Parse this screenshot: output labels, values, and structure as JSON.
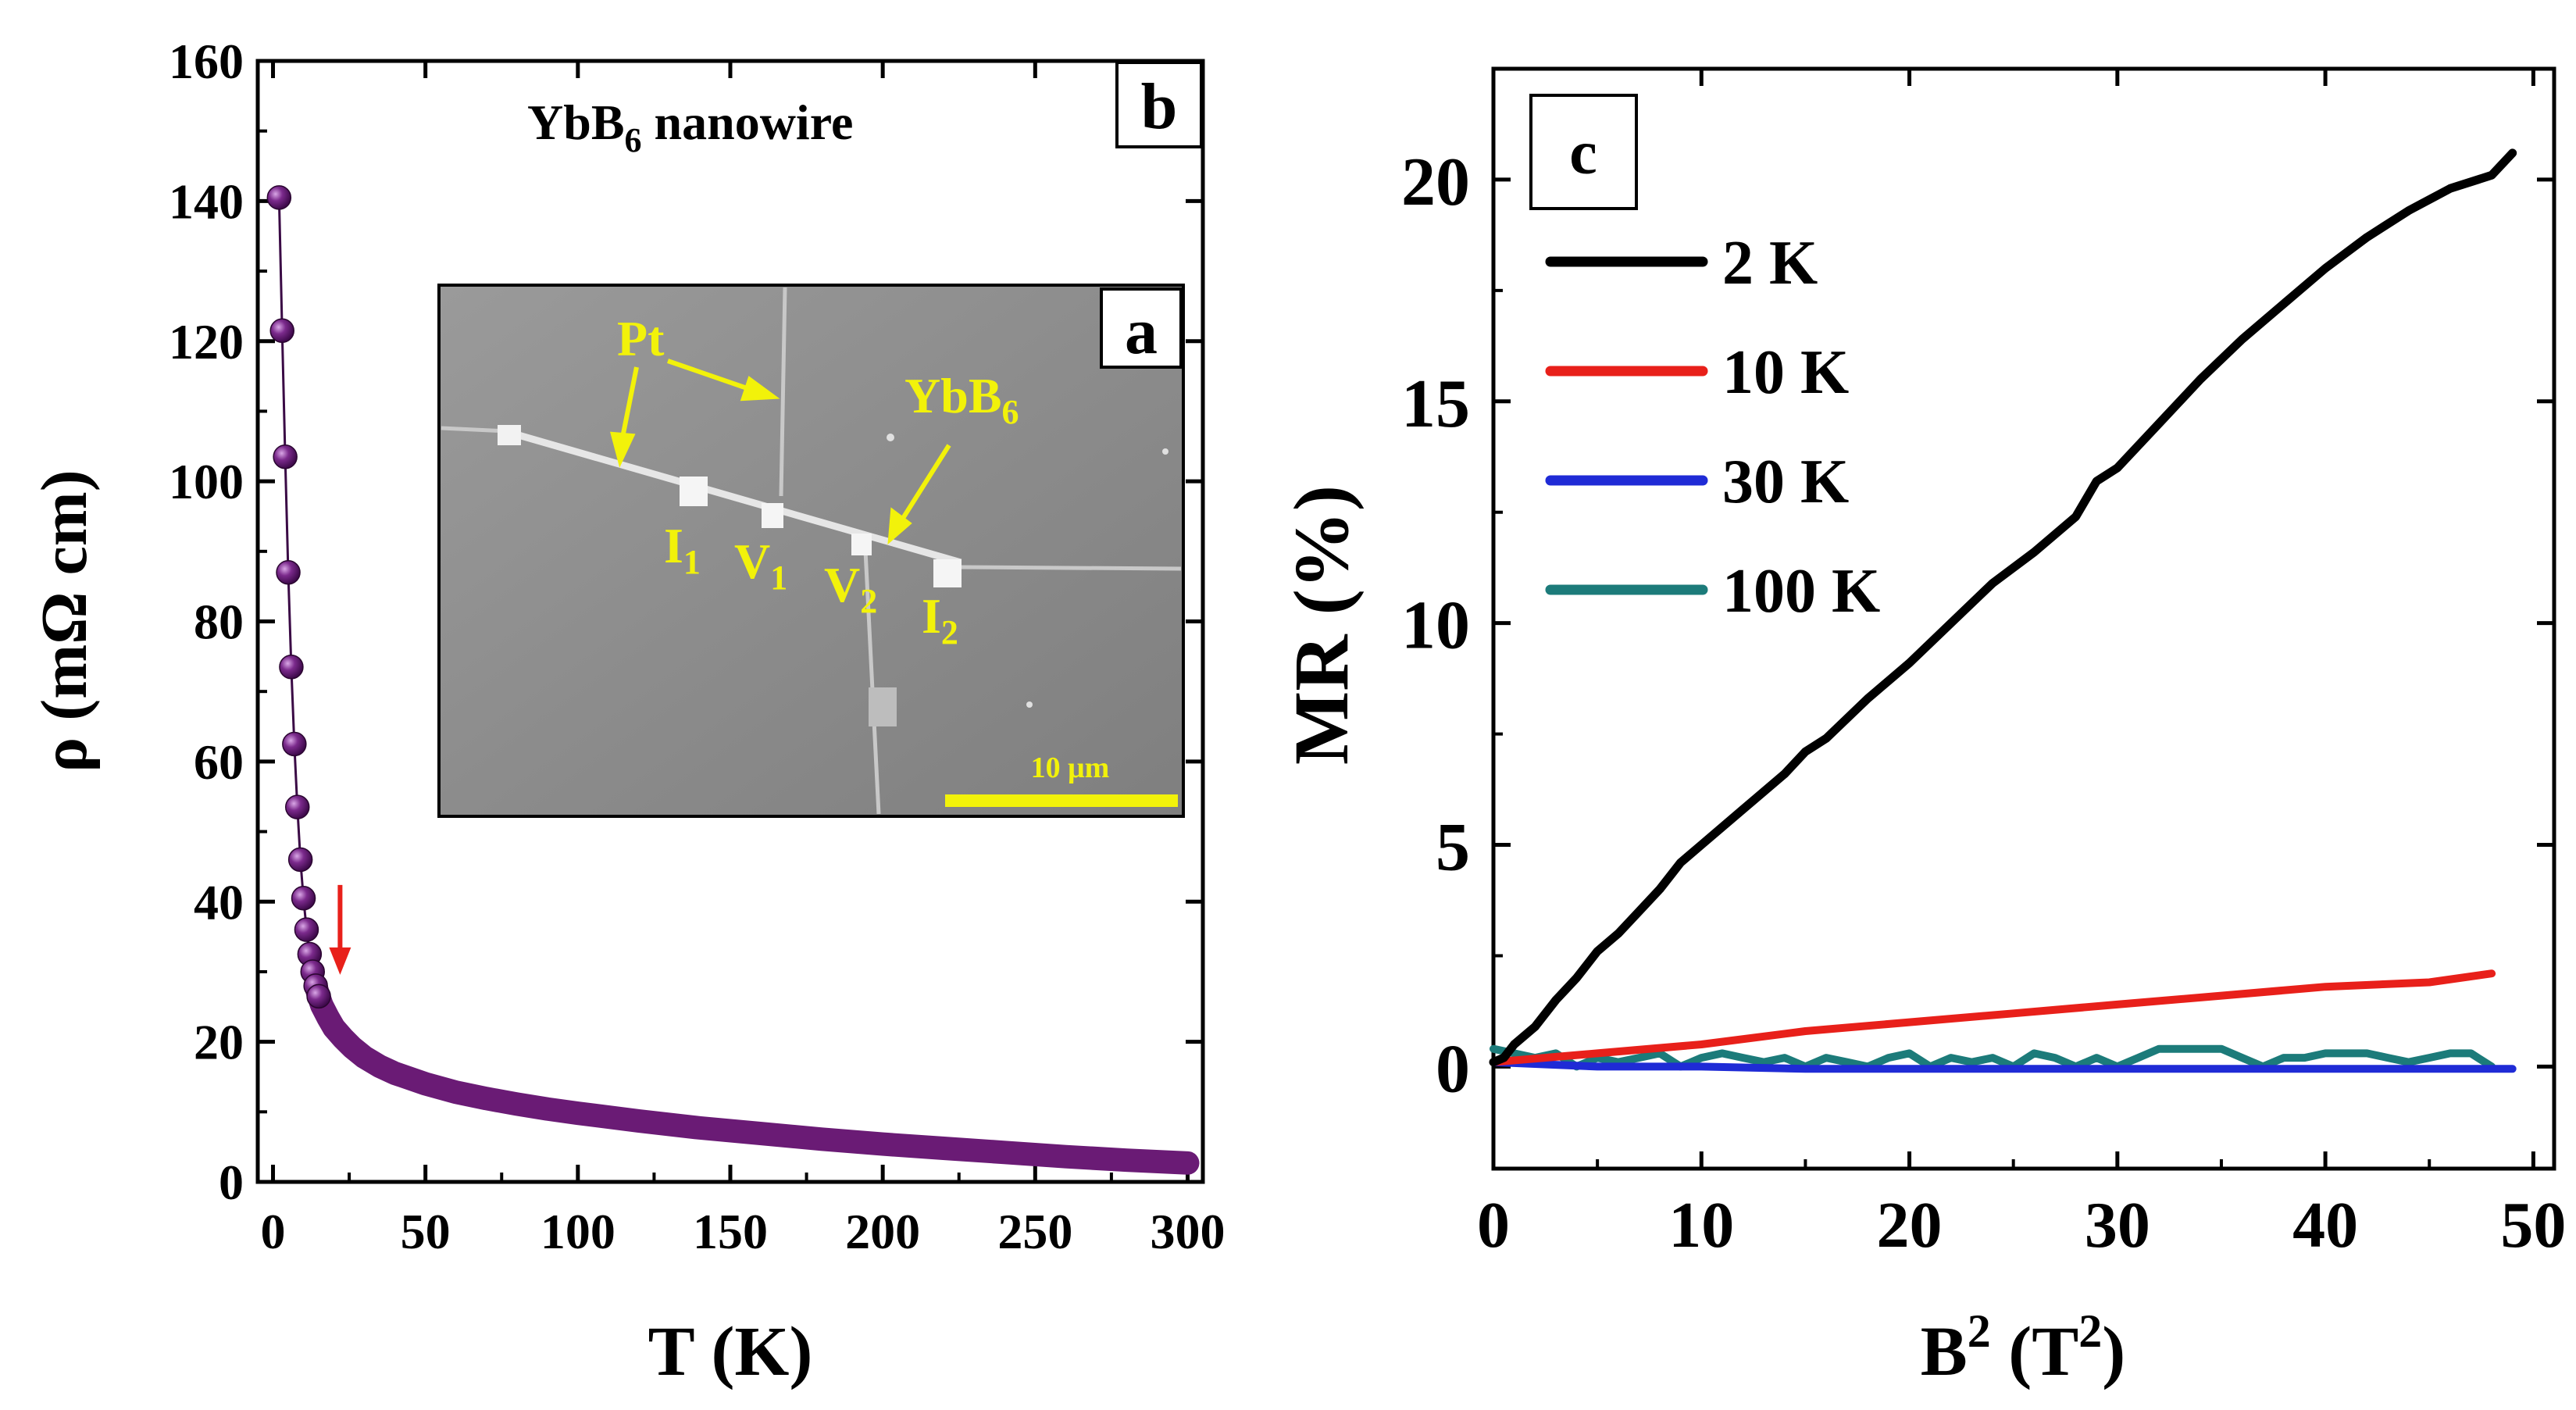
{
  "chart_data": [
    {
      "type": "scatter",
      "panel_label": "b",
      "title": "YbB",
      "title_sub": "6",
      "title_suffix": " nanowire",
      "xlabel": "T (K)",
      "ylabel": "ρ (mΩ cm)",
      "xlim": [
        -5,
        305
      ],
      "ylim": [
        0,
        160
      ],
      "xticks": [
        "0",
        "50",
        "100",
        "150",
        "200",
        "250",
        "300"
      ],
      "yticks": [
        "0",
        "20",
        "40",
        "60",
        "80",
        "100",
        "120",
        "140",
        "160"
      ],
      "grid": false,
      "marker_color": "#6a1b75",
      "arrow_color": "#e8201a",
      "annotation": {
        "type": "arrow",
        "at_x": 22,
        "at_y": 29
      },
      "series": [
        {
          "x": [
            2,
            3,
            4,
            5,
            6,
            7,
            8,
            9,
            10,
            11,
            12,
            13,
            14,
            15,
            16,
            18,
            20,
            23,
            26,
            30,
            35,
            40,
            50,
            60,
            70,
            80,
            90,
            100,
            120,
            140,
            160,
            180,
            200,
            220,
            240,
            260,
            280,
            300
          ],
          "y": [
            140.5,
            121.5,
            103.5,
            87,
            73.5,
            62.5,
            53.5,
            46,
            40.5,
            36,
            32.5,
            30,
            28,
            26.5,
            25.2,
            23.5,
            22,
            20.5,
            19.2,
            17.8,
            16.5,
            15.5,
            14,
            12.8,
            11.9,
            11.1,
            10.4,
            9.8,
            8.7,
            7.7,
            6.9,
            6.1,
            5.4,
            4.8,
            4.2,
            3.6,
            3.1,
            2.7
          ]
        }
      ]
    },
    {
      "type": "line",
      "panel_label": "c",
      "xlabel": "B",
      "xlabel_sup": "2",
      "xlabel_mid": " (T",
      "xlabel_sup2": "2",
      "xlabel_end": ")",
      "ylabel": "MR (%)",
      "xlim": [
        0,
        51
      ],
      "ylim": [
        -2.3,
        22.5
      ],
      "xticks": [
        0,
        10,
        20,
        30,
        40,
        50
      ],
      "yticks": [
        0,
        5,
        10,
        15,
        20
      ],
      "grid": false,
      "legend_position": "top-left",
      "series": [
        {
          "name": "2 K",
          "color": "#000000",
          "x": [
            0,
            0.5,
            1,
            2,
            3,
            4,
            5,
            6,
            7,
            8,
            9,
            10,
            12,
            14,
            15,
            16,
            18,
            20,
            22,
            24,
            26,
            28,
            29,
            30,
            32,
            34,
            36,
            38,
            40,
            42,
            44,
            46,
            48,
            49
          ],
          "y": [
            0.1,
            0.2,
            0.5,
            0.9,
            1.5,
            2.0,
            2.6,
            3.0,
            3.5,
            4.0,
            4.6,
            5.0,
            5.8,
            6.6,
            7.1,
            7.4,
            8.3,
            9.1,
            10.0,
            10.9,
            11.6,
            12.4,
            13.2,
            13.5,
            14.5,
            15.5,
            16.4,
            17.2,
            18.0,
            18.7,
            19.3,
            19.8,
            20.1,
            20.6
          ]
        },
        {
          "name": "10 K",
          "color": "#e8201a",
          "x": [
            0,
            5,
            10,
            15,
            20,
            25,
            30,
            35,
            40,
            45,
            48
          ],
          "y": [
            0.1,
            0.3,
            0.5,
            0.8,
            1.0,
            1.2,
            1.4,
            1.6,
            1.8,
            1.9,
            2.1
          ]
        },
        {
          "name": "30 K",
          "color": "#1f2bd6",
          "x": [
            0,
            5,
            10,
            15,
            20,
            25,
            30,
            35,
            40,
            45,
            49
          ],
          "y": [
            0.1,
            0.0,
            0.0,
            -0.05,
            -0.05,
            -0.05,
            -0.05,
            -0.05,
            -0.05,
            -0.05,
            -0.05
          ]
        },
        {
          "name": "100 K",
          "color": "#1c7b7a",
          "x": [
            0,
            1,
            2,
            3,
            4,
            5,
            6,
            7,
            8,
            9,
            10,
            11,
            12,
            13,
            14,
            15,
            16,
            17,
            18,
            19,
            20,
            21,
            22,
            23,
            24,
            25,
            26,
            27,
            28,
            29,
            30,
            31,
            32,
            33,
            34,
            35,
            36,
            37,
            38,
            39,
            40,
            41,
            42,
            43,
            44,
            45,
            46,
            47,
            48
          ],
          "y": [
            0.4,
            0.3,
            0.2,
            0.3,
            0.0,
            0.2,
            0.1,
            0.2,
            0.3,
            0.0,
            0.2,
            0.3,
            0.2,
            0.1,
            0.2,
            0.0,
            0.2,
            0.1,
            0.0,
            0.2,
            0.3,
            0.0,
            0.2,
            0.1,
            0.2,
            0.0,
            0.3,
            0.2,
            0.0,
            0.2,
            0.0,
            0.2,
            0.4,
            0.4,
            0.4,
            0.4,
            0.2,
            0.0,
            0.2,
            0.2,
            0.3,
            0.3,
            0.3,
            0.2,
            0.1,
            0.2,
            0.3,
            0.3,
            0.0
          ]
        }
      ]
    }
  ],
  "inset": {
    "panel_label": "a",
    "labels": {
      "pt": "Pt",
      "ybb": "YbB",
      "ybb_sub": "6",
      "i1": "I",
      "i1_sub": "1",
      "v1": "V",
      "v1_sub": "1",
      "v2": "V",
      "v2_sub": "2",
      "i2": "I",
      "i2_sub": "2",
      "scale": "10 μm"
    },
    "label_color": "#f2f20a"
  }
}
